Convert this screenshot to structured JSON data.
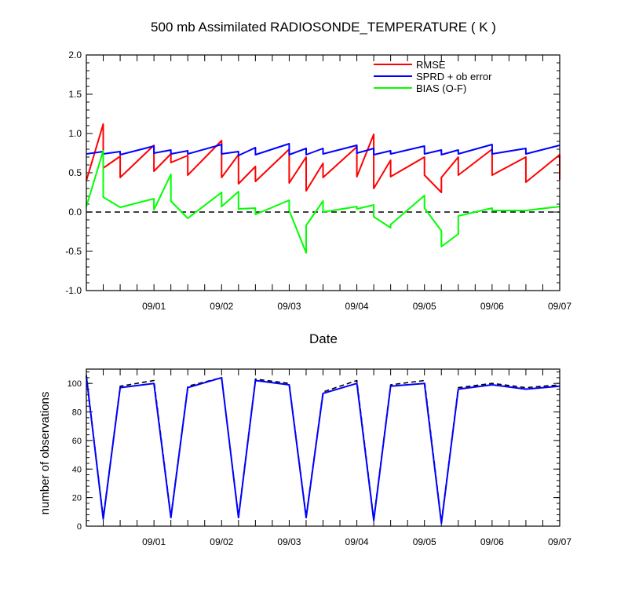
{
  "chart_data": [
    {
      "type": "line",
      "title": "500 mb Assimilated RADIOSONDE_TEMPERATURE ( K )",
      "xlabel": "Date",
      "ylabel": "",
      "x_units": "days since 08/31 00Z",
      "xlim": [
        -0.5,
        6.5
      ],
      "ylim": [
        -1.0,
        2.0
      ],
      "yticks": [
        "-1.0",
        "-0.5",
        "0.0",
        "0.5",
        "1.0",
        "1.5",
        "2.0"
      ],
      "xtick_labels": [
        "09/01",
        "09/02",
        "09/03",
        "09/04",
        "09/05",
        "09/06",
        "09/07"
      ],
      "xtick_positions": [
        0.5,
        1.5,
        2.5,
        3.5,
        4.5,
        5.5,
        6.5
      ],
      "zero_line": true,
      "legend_position": "top-right",
      "series": [
        {
          "name": "RMSE",
          "color": "#ff0000",
          "points": [
            [
              -0.5,
              0.4
            ],
            [
              -0.25,
              1.12
            ],
            [
              -0.25,
              0.56
            ],
            [
              0.0,
              0.71
            ],
            [
              0.0,
              0.44
            ],
            [
              0.5,
              0.85
            ],
            [
              0.5,
              0.52
            ],
            [
              0.75,
              0.74
            ],
            [
              0.75,
              0.63
            ],
            [
              1.0,
              0.72
            ],
            [
              1.0,
              0.47
            ],
            [
              1.5,
              0.91
            ],
            [
              1.5,
              0.44
            ],
            [
              1.75,
              0.73
            ],
            [
              1.75,
              0.36
            ],
            [
              2.0,
              0.58
            ],
            [
              2.0,
              0.39
            ],
            [
              2.5,
              0.8
            ],
            [
              2.5,
              0.37
            ],
            [
              2.75,
              0.7
            ],
            [
              2.75,
              0.27
            ],
            [
              3.0,
              0.62
            ],
            [
              3.0,
              0.44
            ],
            [
              3.5,
              0.83
            ],
            [
              3.5,
              0.45
            ],
            [
              3.75,
              0.99
            ],
            [
              3.75,
              0.3
            ],
            [
              4.0,
              0.66
            ],
            [
              4.0,
              0.45
            ],
            [
              4.5,
              0.7
            ],
            [
              4.5,
              0.47
            ],
            [
              4.75,
              0.25
            ],
            [
              4.75,
              0.44
            ],
            [
              5.0,
              0.7
            ],
            [
              5.0,
              0.47
            ],
            [
              5.5,
              0.8
            ],
            [
              5.5,
              0.47
            ],
            [
              6.0,
              0.7
            ],
            [
              6.0,
              0.38
            ],
            [
              6.5,
              0.73
            ],
            [
              6.5,
              0.41
            ]
          ]
        },
        {
          "name": "SPRD + ob error",
          "color": "#0000ff",
          "points": [
            [
              -0.5,
              0.74
            ],
            [
              -0.25,
              0.77
            ],
            [
              -0.25,
              0.74
            ],
            [
              0.0,
              0.77
            ],
            [
              0.0,
              0.73
            ],
            [
              0.5,
              0.84
            ],
            [
              0.5,
              0.75
            ],
            [
              0.75,
              0.79
            ],
            [
              0.75,
              0.74
            ],
            [
              1.0,
              0.78
            ],
            [
              1.0,
              0.74
            ],
            [
              1.5,
              0.86
            ],
            [
              1.5,
              0.74
            ],
            [
              1.75,
              0.77
            ],
            [
              1.75,
              0.72
            ],
            [
              2.0,
              0.82
            ],
            [
              2.0,
              0.73
            ],
            [
              2.5,
              0.87
            ],
            [
              2.5,
              0.73
            ],
            [
              2.75,
              0.81
            ],
            [
              2.75,
              0.73
            ],
            [
              3.0,
              0.81
            ],
            [
              3.0,
              0.74
            ],
            [
              3.5,
              0.85
            ],
            [
              3.5,
              0.75
            ],
            [
              3.75,
              0.81
            ],
            [
              3.75,
              0.73
            ],
            [
              4.0,
              0.78
            ],
            [
              4.0,
              0.74
            ],
            [
              4.5,
              0.84
            ],
            [
              4.5,
              0.74
            ],
            [
              4.75,
              0.79
            ],
            [
              4.75,
              0.73
            ],
            [
              5.0,
              0.79
            ],
            [
              5.0,
              0.74
            ],
            [
              5.5,
              0.86
            ],
            [
              5.5,
              0.74
            ],
            [
              6.0,
              0.81
            ],
            [
              6.0,
              0.74
            ],
            [
              6.5,
              0.85
            ]
          ]
        },
        {
          "name": "BIAS (O-F)",
          "color": "#00ff00",
          "points": [
            [
              -0.5,
              0.07
            ],
            [
              -0.25,
              0.78
            ],
            [
              -0.25,
              0.19
            ],
            [
              0.0,
              0.06
            ],
            [
              0.0,
              0.06
            ],
            [
              0.5,
              0.17
            ],
            [
              0.5,
              0.03
            ],
            [
              0.75,
              0.48
            ],
            [
              0.75,
              0.14
            ],
            [
              1.0,
              -0.08
            ],
            [
              1.0,
              -0.08
            ],
            [
              1.5,
              0.25
            ],
            [
              1.5,
              0.07
            ],
            [
              1.75,
              0.26
            ],
            [
              1.75,
              0.04
            ],
            [
              2.0,
              0.05
            ],
            [
              2.0,
              -0.03
            ],
            [
              2.5,
              0.15
            ],
            [
              2.5,
              0.02
            ],
            [
              2.75,
              -0.52
            ],
            [
              2.75,
              -0.17
            ],
            [
              3.0,
              0.14
            ],
            [
              3.0,
              0.0
            ],
            [
              3.5,
              0.07
            ],
            [
              3.5,
              0.04
            ],
            [
              3.75,
              0.09
            ],
            [
              3.75,
              -0.06
            ],
            [
              4.0,
              -0.2
            ],
            [
              4.0,
              -0.16
            ],
            [
              4.5,
              0.21
            ],
            [
              4.5,
              0.05
            ],
            [
              4.75,
              -0.24
            ],
            [
              4.75,
              -0.44
            ],
            [
              5.0,
              -0.28
            ],
            [
              5.0,
              -0.05
            ],
            [
              5.5,
              0.05
            ],
            [
              5.5,
              0.02
            ],
            [
              6.0,
              0.02
            ],
            [
              6.5,
              0.07
            ]
          ]
        }
      ]
    },
    {
      "type": "line",
      "title": "",
      "xlabel": "",
      "ylabel": "number of observations",
      "x_units": "days since 08/31 00Z",
      "xlim": [
        -0.5,
        6.5
      ],
      "ylim": [
        0,
        110
      ],
      "yticks": [
        "0",
        "20",
        "40",
        "60",
        "80",
        "100"
      ],
      "xtick_labels": [
        "09/01",
        "09/02",
        "09/03",
        "09/04",
        "09/05",
        "09/06",
        "09/07"
      ],
      "xtick_positions": [
        0.5,
        1.5,
        2.5,
        3.5,
        4.5,
        5.5,
        6.5
      ],
      "series": [
        {
          "style": "dashed",
          "color": "#000000",
          "points": [
            [
              -0.5,
              106
            ],
            [
              -0.25,
              6
            ],
            [
              0.0,
              98
            ],
            [
              0.5,
              102
            ],
            [
              0.75,
              7
            ],
            [
              1.0,
              98
            ],
            [
              1.5,
              104
            ],
            [
              1.75,
              7
            ],
            [
              2.0,
              103
            ],
            [
              2.5,
              100
            ],
            [
              2.75,
              7
            ],
            [
              3.0,
              94
            ],
            [
              3.5,
              102
            ],
            [
              3.75,
              5
            ],
            [
              4.0,
              99
            ],
            [
              4.5,
              102
            ],
            [
              4.75,
              3
            ],
            [
              5.0,
              97
            ],
            [
              5.5,
              100
            ],
            [
              6.0,
              97
            ],
            [
              6.5,
              99
            ]
          ]
        },
        {
          "style": "solid",
          "color": "#0000ff",
          "points": [
            [
              -0.5,
              105
            ],
            [
              -0.25,
              5
            ],
            [
              0.0,
              97
            ],
            [
              0.5,
              100
            ],
            [
              0.75,
              6
            ],
            [
              1.0,
              97
            ],
            [
              1.5,
              104
            ],
            [
              1.75,
              6
            ],
            [
              2.0,
              102
            ],
            [
              2.5,
              99
            ],
            [
              2.75,
              6
            ],
            [
              3.0,
              93
            ],
            [
              3.5,
              100
            ],
            [
              3.75,
              4
            ],
            [
              4.0,
              98
            ],
            [
              4.5,
              100
            ],
            [
              4.75,
              2
            ],
            [
              5.0,
              96
            ],
            [
              5.5,
              99
            ],
            [
              6.0,
              96
            ],
            [
              6.5,
              98
            ]
          ]
        }
      ]
    }
  ]
}
